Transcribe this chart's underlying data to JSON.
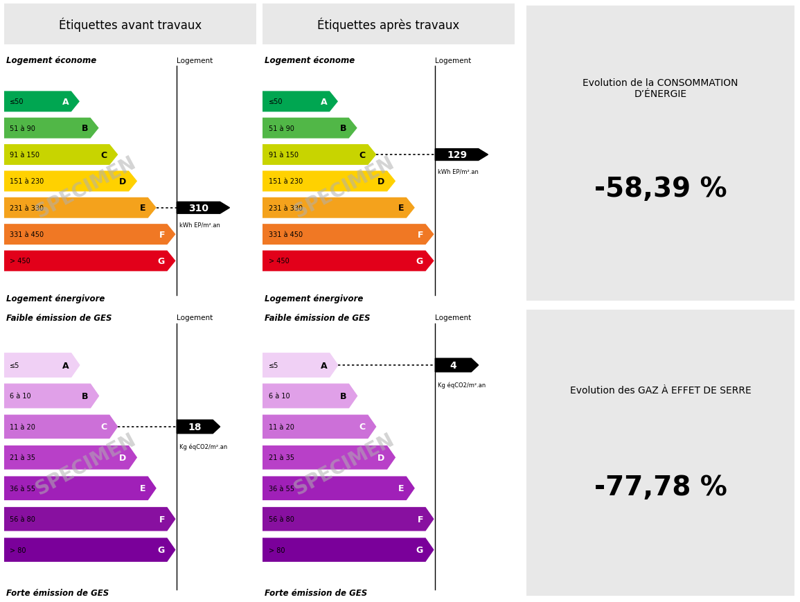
{
  "title_avant": "Étiquettes avant travaux",
  "title_apres": "Étiquettes après travaux",
  "header_bg": "#e8e8e8",
  "panel_bg": "#e8e8e8",
  "white_bg": "#ffffff",
  "energy_labels": [
    "A",
    "B",
    "C",
    "D",
    "E",
    "F",
    "G"
  ],
  "energy_ranges": [
    "≤50",
    "51 à 90",
    "91 à 150",
    "151 à 230",
    "231 à 330",
    "331 à 450",
    "> 450"
  ],
  "energy_colors": [
    "#00a651",
    "#51b747",
    "#c8d400",
    "#ffd100",
    "#f4a21c",
    "#f07824",
    "#e2001a"
  ],
  "ges_labels": [
    "A",
    "B",
    "C",
    "D",
    "E",
    "F",
    "G"
  ],
  "ges_ranges": [
    "≤5",
    "6 à 10",
    "11 à 20",
    "21 à 35",
    "36 à 55",
    "56 à 80",
    "> 80"
  ],
  "ges_colors": [
    "#f0d0f5",
    "#e0a0e8",
    "#cc70d8",
    "#b840c8",
    "#a020b8",
    "#8810a0",
    "#7a009a"
  ],
  "before_energy_value": "310",
  "before_energy_row": 4,
  "after_energy_value": "129",
  "after_energy_row": 2,
  "before_ges_value": "18",
  "before_ges_row": 2,
  "after_ges_value": "4",
  "after_ges_row": 0,
  "energy_unit": "kWh EP/m².an",
  "ges_unit": "Kg éqCO2/m².an",
  "evolution_energy_title": "Evolution de la CONSOMMATION\nD’ÉNERGIE",
  "evolution_energy_value": "-58,39 %",
  "evolution_ges_title": "Evolution des GAZ À EFFET DE SERRE",
  "evolution_ges_value": "-77,78 %",
  "logement_econome": "Logement économe",
  "logement_energivore": "Logement énergivore",
  "faible_emission": "Faible émission de GES",
  "forte_emission": "Forte émission de GES",
  "logement_label": "Logement",
  "specimen_color": "#b0b0b0",
  "specimen_alpha": 0.55
}
